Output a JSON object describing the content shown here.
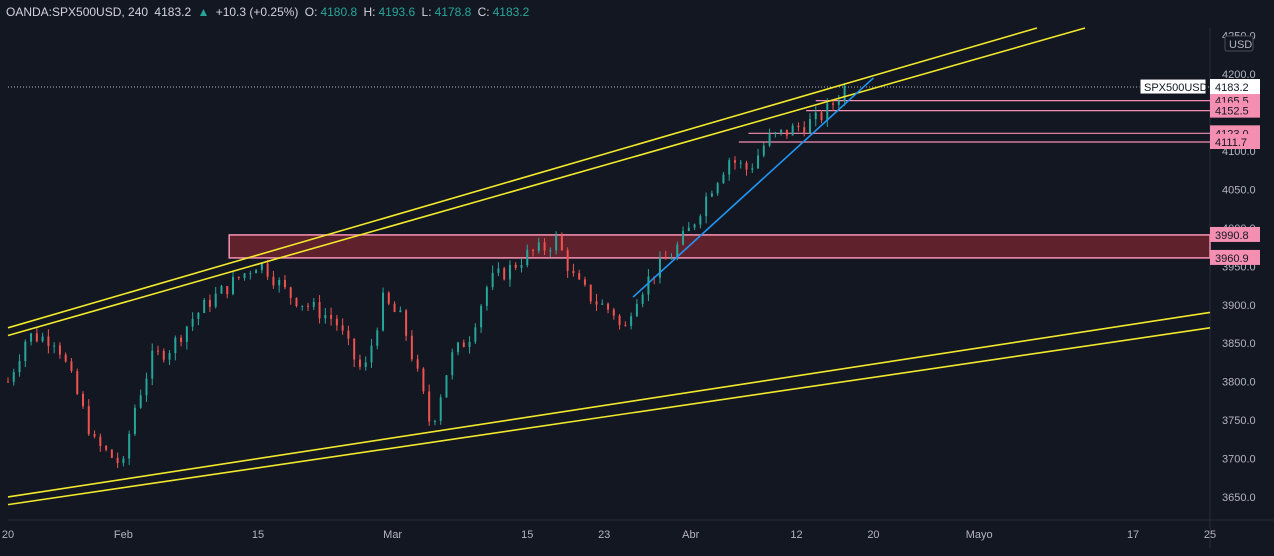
{
  "header": {
    "symbol": "OANDA:SPX500USD, 240",
    "last": "4183.2",
    "change_icon": "triangle-up-icon",
    "change": "+10.3 (+0.25%)",
    "o_label": "O:",
    "o_value": "4180.8",
    "h_label": "H:",
    "h_value": "4193.6",
    "l_label": "L:",
    "l_value": "4178.8",
    "c_label": "C:",
    "c_value": "4183.2"
  },
  "chart_data": {
    "type": "candlestick",
    "currency": "USD",
    "symbol_label": "SPX500USD",
    "last_price": 4183.2,
    "ylim": [
      3620,
      4260
    ],
    "yticks": [
      3650,
      3700,
      3750,
      3800,
      3850,
      3900,
      3950,
      4000,
      4050,
      4100,
      4150,
      4200,
      4250
    ],
    "xticks": [
      {
        "label": "20",
        "date": "2021-01-20"
      },
      {
        "label": "Feb",
        "date": "2021-02-01"
      },
      {
        "label": "15",
        "date": "2021-02-15"
      },
      {
        "label": "Mar",
        "date": "2021-03-01"
      },
      {
        "label": "15",
        "date": "2021-03-15"
      },
      {
        "label": "23",
        "date": "2021-03-23"
      },
      {
        "label": "Abr",
        "date": "2021-04-01"
      },
      {
        "label": "12",
        "date": "2021-04-12"
      },
      {
        "label": "20",
        "date": "2021-04-20"
      },
      {
        "label": "Mayo",
        "date": "2021-05-01"
      },
      {
        "label": "17",
        "date": "2021-05-17"
      },
      {
        "label": "25",
        "date": "2021-05-25"
      }
    ],
    "xlim": [
      "2021-01-20",
      "2021-05-25"
    ],
    "price_path": [
      [
        "2021-01-20",
        3800
      ],
      [
        "2021-01-22",
        3860
      ],
      [
        "2021-01-25",
        3855
      ],
      [
        "2021-01-27",
        3790
      ],
      [
        "2021-01-29",
        3720
      ],
      [
        "2021-02-01",
        3690
      ],
      [
        "2021-02-02",
        3760
      ],
      [
        "2021-02-04",
        3830
      ],
      [
        "2021-02-06",
        3845
      ],
      [
        "2021-02-08",
        3880
      ],
      [
        "2021-02-10",
        3905
      ],
      [
        "2021-02-12",
        3925
      ],
      [
        "2021-02-15",
        3955
      ],
      [
        "2021-02-16",
        3945
      ],
      [
        "2021-02-18",
        3915
      ],
      [
        "2021-02-20",
        3900
      ],
      [
        "2021-02-23",
        3880
      ],
      [
        "2021-02-25",
        3830
      ],
      [
        "2021-02-26",
        3810
      ],
      [
        "2021-02-28",
        3905
      ],
      [
        "2021-03-02",
        3880
      ],
      [
        "2021-03-04",
        3790
      ],
      [
        "2021-03-05",
        3740
      ],
      [
        "2021-03-07",
        3830
      ],
      [
        "2021-03-09",
        3860
      ],
      [
        "2021-03-11",
        3930
      ],
      [
        "2021-03-13",
        3945
      ],
      [
        "2021-03-15",
        3965
      ],
      [
        "2021-03-17",
        3975
      ],
      [
        "2021-03-18",
        3985
      ],
      [
        "2021-03-20",
        3930
      ],
      [
        "2021-03-22",
        3905
      ],
      [
        "2021-03-24",
        3890
      ],
      [
        "2021-03-25",
        3860
      ],
      [
        "2021-03-26",
        3905
      ],
      [
        "2021-03-28",
        3940
      ],
      [
        "2021-03-30",
        3965
      ],
      [
        "2021-04-01",
        4000
      ],
      [
        "2021-04-03",
        4050
      ],
      [
        "2021-04-05",
        4090
      ],
      [
        "2021-04-07",
        4075
      ],
      [
        "2021-04-09",
        4115
      ],
      [
        "2021-04-12",
        4130
      ],
      [
        "2021-04-14",
        4140
      ],
      [
        "2021-04-15",
        4150
      ],
      [
        "2021-04-16",
        4165
      ],
      [
        "2021-04-17",
        4183
      ]
    ],
    "trendlines": [
      {
        "name": "channel-upper-1",
        "color": "#f2e82c",
        "points": [
          [
            "2021-01-20",
            3870
          ],
          [
            "2021-05-07",
            4260
          ]
        ]
      },
      {
        "name": "channel-upper-2",
        "color": "#f2e82c",
        "points": [
          [
            "2021-01-20",
            3860
          ],
          [
            "2021-05-12",
            4260
          ]
        ]
      },
      {
        "name": "channel-lower-1",
        "color": "#f2e82c",
        "points": [
          [
            "2021-01-20",
            3650
          ],
          [
            "2021-05-25",
            3890
          ]
        ]
      },
      {
        "name": "channel-lower-2",
        "color": "#f2e82c",
        "points": [
          [
            "2021-01-20",
            3640
          ],
          [
            "2021-05-25",
            3870
          ]
        ]
      },
      {
        "name": "short-trend",
        "color": "#2196f3",
        "points": [
          [
            "2021-03-26",
            3910
          ],
          [
            "2021-04-20",
            4195
          ]
        ]
      }
    ],
    "zones": [
      {
        "name": "resistance-zone",
        "from": 3960.9,
        "to": 3990.8,
        "start": "2021-02-12",
        "end": "2021-05-25",
        "color": "#f48fb1"
      }
    ],
    "levels": [
      {
        "value": 4165.5,
        "label": "4165.5",
        "start": "2021-04-14"
      },
      {
        "value": 4152.5,
        "label": "4152.5",
        "start": "2021-04-13"
      },
      {
        "value": 4123.0,
        "label": "4123.0",
        "start": "2021-04-07"
      },
      {
        "value": 4111.7,
        "label": "4111.7",
        "start": "2021-04-06"
      },
      {
        "value": 3990.8,
        "label": "3990.8",
        "start": "2021-02-12"
      },
      {
        "value": 3960.9,
        "label": "3960.9",
        "start": "2021-02-12"
      }
    ],
    "colors": {
      "up": "#26a69a",
      "down": "#ef5350",
      "background": "#131722",
      "level": "#f48fb1",
      "channel": "#f2e82c",
      "trend": "#2196f3"
    }
  }
}
